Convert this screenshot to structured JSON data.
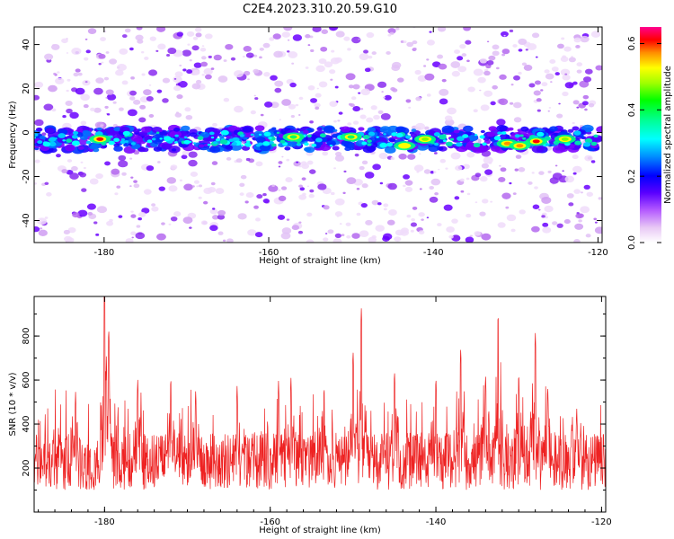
{
  "title": "C2E4.2023.310.20.59.G10",
  "chart_data": [
    {
      "type": "heatmap",
      "xlabel": "Height of straight line (km)",
      "ylabel": "Frequency (Hz)",
      "xlim": [
        -188.5,
        -119.5
      ],
      "ylim": [
        -50,
        48
      ],
      "xticks": [
        -180,
        -160,
        -140,
        -120
      ],
      "yticks": [
        -40,
        -20,
        0,
        20,
        40
      ],
      "band_center_hz": -3,
      "hotspots": [
        {
          "x": -180.5,
          "y": -3,
          "value": 0.6
        },
        {
          "x": -157.0,
          "y": -2,
          "value": 0.25
        },
        {
          "x": -150.0,
          "y": -2,
          "value": 0.3
        },
        {
          "x": -143.5,
          "y": -6,
          "value": 0.45
        },
        {
          "x": -141.0,
          "y": -3,
          "value": 0.35
        },
        {
          "x": -131.0,
          "y": -5,
          "value": 0.5
        },
        {
          "x": -129.5,
          "y": -6,
          "value": 0.55
        },
        {
          "x": -127.5,
          "y": -4,
          "value": 0.62
        },
        {
          "x": -124.0,
          "y": -3,
          "value": 0.4
        }
      ],
      "colorbar": {
        "label": "Normalized spectral amplitude",
        "range": [
          0.0,
          0.65
        ],
        "ticks": [
          0.0,
          0.2,
          0.4,
          0.6
        ]
      }
    },
    {
      "type": "line",
      "color": "#ee2222",
      "xlabel": "Height of straight line (km)",
      "ylabel": "SNR (10 * v/v)",
      "xlim": [
        -188.5,
        -119.5
      ],
      "ylim": [
        0,
        980
      ],
      "xticks": [
        -180,
        -160,
        -140,
        -120
      ],
      "yticks": [
        200,
        400,
        600,
        800
      ],
      "baseline_mean": 230,
      "peaks": [
        {
          "x": -183.5,
          "y": 550
        },
        {
          "x": -180.0,
          "y": 970
        },
        {
          "x": -179.5,
          "y": 840
        },
        {
          "x": -176.0,
          "y": 610
        },
        {
          "x": -172.0,
          "y": 620
        },
        {
          "x": -169.0,
          "y": 560
        },
        {
          "x": -164.0,
          "y": 580
        },
        {
          "x": -159.0,
          "y": 600
        },
        {
          "x": -157.5,
          "y": 620
        },
        {
          "x": -153.5,
          "y": 580
        },
        {
          "x": -150.0,
          "y": 740
        },
        {
          "x": -149.0,
          "y": 930
        },
        {
          "x": -145.0,
          "y": 650
        },
        {
          "x": -140.0,
          "y": 620
        },
        {
          "x": -137.0,
          "y": 750
        },
        {
          "x": -134.0,
          "y": 630
        },
        {
          "x": -132.5,
          "y": 910
        },
        {
          "x": -130.0,
          "y": 640
        },
        {
          "x": -128.0,
          "y": 820
        },
        {
          "x": -126.5,
          "y": 580
        },
        {
          "x": -123.0,
          "y": 480
        }
      ]
    }
  ]
}
